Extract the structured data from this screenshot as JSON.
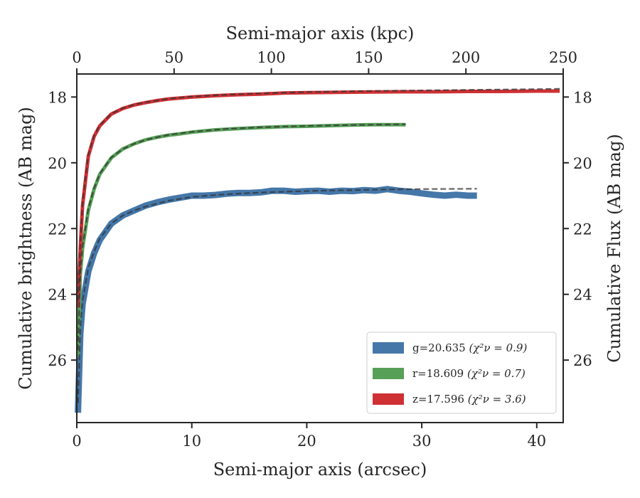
{
  "chart_data": {
    "type": "line",
    "xlabel": "Semi-major axis (arcsec)",
    "ylabel": "Cumulative brightness (AB mag)",
    "top_xlabel": "Semi-major axis (kpc)",
    "right_ylabel": "Cumulative Flux (AB mag)",
    "xlim": [
      0,
      42.3
    ],
    "ylim": [
      27.9,
      17.3
    ],
    "top_xlim": [
      0,
      250
    ],
    "x_ticks": [
      "0",
      "10",
      "20",
      "30",
      "40"
    ],
    "x_tick_values": [
      0,
      10,
      20,
      30,
      40
    ],
    "top_x_ticks": [
      "0",
      "50",
      "100",
      "150",
      "200",
      "250"
    ],
    "top_x_tick_values": [
      0,
      50,
      100,
      150,
      200,
      250
    ],
    "y_ticks": [
      "18",
      "20",
      "22",
      "24",
      "26"
    ],
    "y_tick_values": [
      18,
      20,
      22,
      24,
      26
    ],
    "legend_position": "lower right",
    "series": [
      {
        "name": "g=20.635",
        "chi2_label": "(χ²ν = 0.9)",
        "color": "#4577a9",
        "x": [
          0.1,
          0.3,
          0.5,
          1.0,
          1.5,
          2.0,
          3.0,
          4.0,
          5.0,
          6.0,
          7.0,
          8.0,
          9.0,
          10.0,
          11.0,
          12.0,
          13.0,
          14.0,
          15.0,
          16.0,
          17.0,
          18.0,
          19.0,
          20.0,
          21.0,
          22.0,
          23.0,
          24.0,
          25.0,
          26.0,
          27.0,
          28.0,
          29.0,
          30.0,
          31.0,
          32.0,
          33.0,
          34.0,
          34.8
        ],
        "mag": [
          27.6,
          25.2,
          24.3,
          23.3,
          22.75,
          22.35,
          21.85,
          21.6,
          21.45,
          21.3,
          21.2,
          21.12,
          21.06,
          21.0,
          21.0,
          20.98,
          20.94,
          20.92,
          20.92,
          20.9,
          20.85,
          20.85,
          20.88,
          20.86,
          20.85,
          20.88,
          20.85,
          20.86,
          20.83,
          20.85,
          20.8,
          20.85,
          20.88,
          20.93,
          20.97,
          21.0,
          20.97,
          21.0,
          21.0
        ],
        "model_x": [
          0.1,
          0.3,
          0.5,
          1.0,
          1.5,
          2.0,
          3.0,
          4.0,
          5.0,
          6.0,
          8.0,
          10.0,
          12.0,
          15.0,
          18.0,
          21.0,
          24.0,
          27.0,
          30.0,
          34.8
        ],
        "model_mag": [
          27.3,
          25.0,
          24.2,
          23.2,
          22.7,
          22.3,
          21.85,
          21.6,
          21.45,
          21.33,
          21.15,
          21.04,
          20.98,
          20.92,
          20.88,
          20.85,
          20.83,
          20.81,
          20.8,
          20.79
        ]
      },
      {
        "name": "r=18.609",
        "chi2_label": "(χ²ν = 0.7)",
        "color": "#57a057",
        "x": [
          0.1,
          0.3,
          0.5,
          1.0,
          1.5,
          2.0,
          3.0,
          4.0,
          5.0,
          6.0,
          7.0,
          8.0,
          9.0,
          10.0,
          12.0,
          14.0,
          16.0,
          18.0,
          20.0,
          22.0,
          24.0,
          26.0,
          28.6
        ],
        "mag": [
          25.9,
          23.4,
          22.6,
          21.45,
          20.8,
          20.35,
          19.85,
          19.58,
          19.42,
          19.3,
          19.22,
          19.16,
          19.12,
          19.07,
          19.0,
          18.96,
          18.93,
          18.9,
          18.89,
          18.87,
          18.85,
          18.84,
          18.84
        ],
        "model_x": [
          0.1,
          0.3,
          0.5,
          1.0,
          1.5,
          2.0,
          3.0,
          4.0,
          5.0,
          6.0,
          8.0,
          10.0,
          13.0,
          16.0,
          20.0,
          24.0,
          28.6
        ],
        "model_mag": [
          25.7,
          23.3,
          22.55,
          21.4,
          20.78,
          20.33,
          19.84,
          19.58,
          19.42,
          19.3,
          19.15,
          19.06,
          18.97,
          18.92,
          18.88,
          18.85,
          18.83
        ]
      },
      {
        "name": "z=17.596",
        "chi2_label": "(χ²ν = 3.6)",
        "color": "#cf3034",
        "x": [
          0.1,
          0.3,
          0.5,
          1.0,
          1.5,
          2.0,
          3.0,
          4.0,
          5.0,
          6.0,
          7.0,
          8.0,
          10.0,
          12.0,
          14.0,
          16.0,
          18.0,
          20.0,
          22.0,
          25.0,
          28.0,
          31.0,
          34.0,
          37.0,
          40.0,
          42.0
        ],
        "mag": [
          24.4,
          22.6,
          21.3,
          19.8,
          19.2,
          18.88,
          18.52,
          18.35,
          18.24,
          18.17,
          18.11,
          18.06,
          18.0,
          17.96,
          17.93,
          17.91,
          17.88,
          17.87,
          17.86,
          17.85,
          17.84,
          17.84,
          17.83,
          17.83,
          17.82,
          17.82
        ],
        "model_x": [
          0.1,
          0.3,
          0.5,
          1.0,
          1.5,
          2.0,
          3.0,
          4.0,
          5.0,
          6.0,
          8.0,
          10.0,
          13.0,
          16.0,
          20.0,
          25.0,
          30.0,
          35.0,
          40.0,
          42.0
        ],
        "model_mag": [
          24.2,
          22.5,
          21.2,
          19.75,
          19.18,
          18.86,
          18.51,
          18.34,
          18.23,
          18.16,
          18.05,
          17.99,
          17.93,
          17.89,
          17.85,
          17.82,
          17.8,
          17.78,
          17.76,
          17.75
        ]
      }
    ]
  }
}
